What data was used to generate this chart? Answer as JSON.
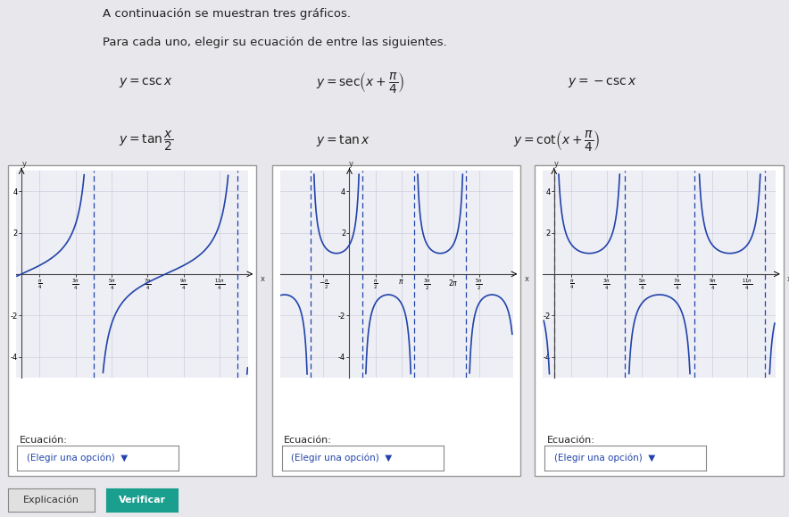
{
  "title_line1": "A continuación se muestran tres gráficos.",
  "title_line2": "Para cada uno, elegir su ecuación de entre las siguientes.",
  "bg_color": "#e8e8ec",
  "panel_bg": "#ffffff",
  "graph_bg": "#eeeef5",
  "grid_color": "#c8c8d8",
  "axis_color": "#444444",
  "curve_color": "#2244aa",
  "asymptote_color": "#2244aa",
  "y_min": -5.0,
  "y_max": 5.0,
  "clip_val": 4.85,
  "title_fontsize": 9.5,
  "eq_fontsize": 10,
  "label_fontsize": 7.5,
  "tick_fontsize": 5.5,
  "ecuacion_fontsize": 8,
  "btn_fontsize": 7.5,
  "graph1_xlim": [
    -0.25,
    9.9
  ],
  "graph2_xlim": [
    -4.2,
    9.9
  ],
  "graph3_xlim": [
    -0.5,
    9.9
  ],
  "graph1_asym": [
    3.14159265,
    9.42477796
  ],
  "graph2_asym": [
    -2.35619449,
    0.78539816,
    3.92699082,
    7.06858347
  ],
  "graph3_asym": [
    0.0,
    3.14159265,
    6.2831853,
    9.42477796
  ],
  "verificar_color": "#1a9e8e",
  "explicacion_color": "#e0e0e0"
}
